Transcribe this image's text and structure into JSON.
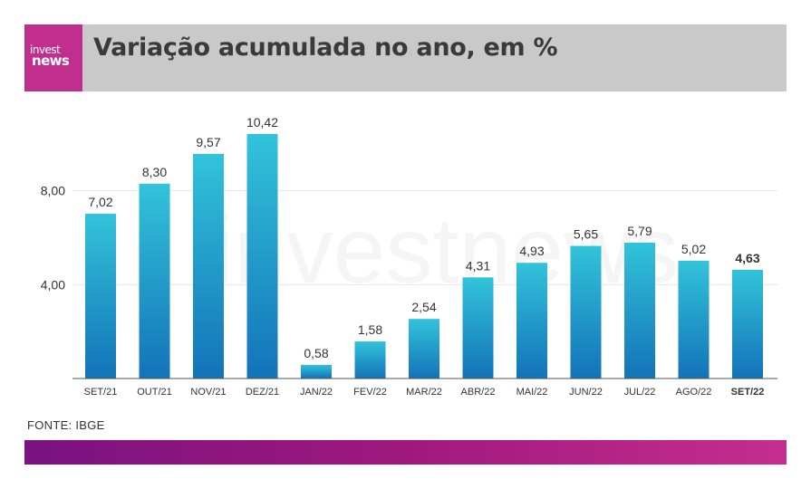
{
  "header": {
    "title": "Variação acumulada no ano, em %",
    "logo_top": "invest",
    "logo_bottom": "news"
  },
  "watermark": "investnews",
  "source": "FONTE: IBGE",
  "colors": {
    "header_bg": "#c9c9c9",
    "logo_bg": "#c02f8e",
    "bar_top": "#32c3da",
    "bar_bottom": "#1373b9",
    "footer_start": "#7a1281",
    "footer_end": "#c52e8e"
  },
  "chart_data": {
    "type": "bar",
    "title": "Variação acumulada no ano, em %",
    "categories": [
      "SET/21",
      "OUT/21",
      "NOV/21",
      "DEZ/21",
      "JAN/22",
      "FEV/22",
      "MAR/22",
      "ABR/22",
      "MAI/22",
      "JUN/22",
      "JUL/22",
      "AGO/22",
      "SET/22"
    ],
    "values": [
      7.02,
      8.3,
      9.57,
      10.42,
      0.58,
      1.58,
      2.54,
      4.31,
      4.93,
      5.65,
      5.79,
      5.02,
      4.63
    ],
    "value_labels": [
      "7,02",
      "8,30",
      "9,57",
      "10,42",
      "0,58",
      "1,58",
      "2,54",
      "4,31",
      "4,93",
      "5,65",
      "5,79",
      "5,02",
      "4,63"
    ],
    "highlight_index": 12,
    "yticks": [
      4,
      8
    ],
    "ytick_labels": [
      "4,00",
      "8,00"
    ],
    "ylim": [
      0,
      12
    ],
    "grid": true,
    "xlabel": "",
    "ylabel": ""
  }
}
